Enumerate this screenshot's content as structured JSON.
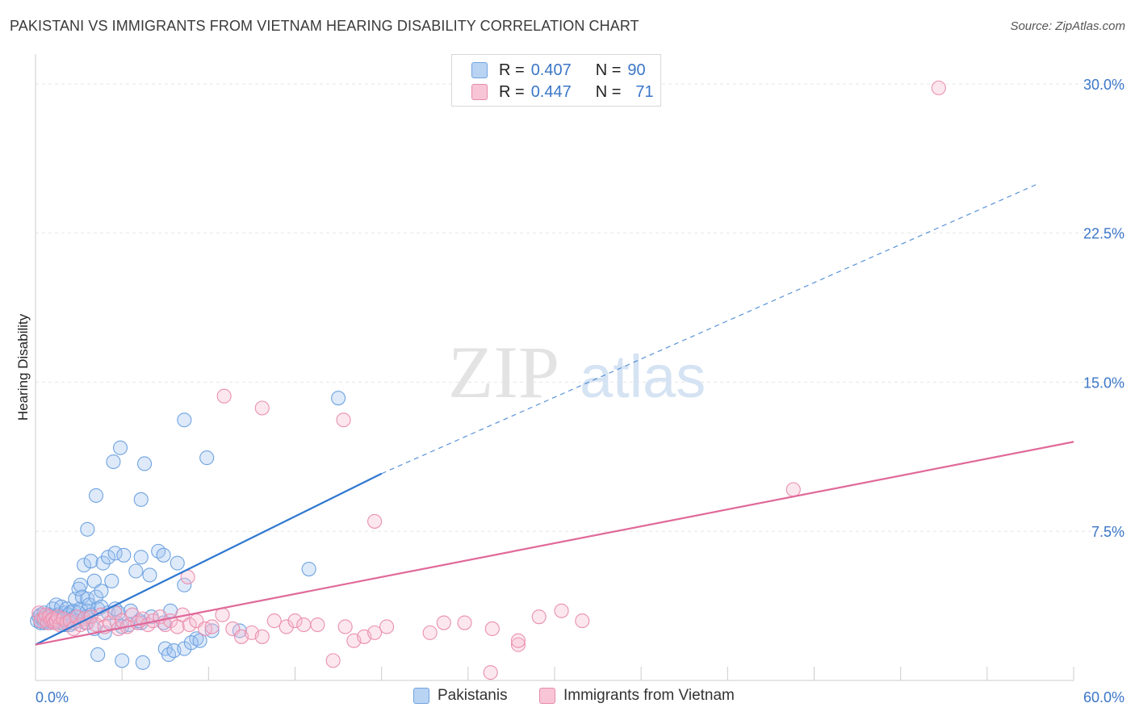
{
  "title": "PAKISTANI VS IMMIGRANTS FROM VIETNAM HEARING DISABILITY CORRELATION CHART",
  "source": "Source: ZipAtlas.com",
  "watermark": {
    "zip": "ZIP",
    "atlas": "atlas"
  },
  "legend": {
    "r_label": "R =",
    "n_label": "N =",
    "series": [
      {
        "name": "Pakistanis",
        "r": "0.407",
        "n": "90",
        "color": "#6fa3e0",
        "fill": "#b9d3f3"
      },
      {
        "name": "Immigrants from Vietnam",
        "r": "0.447",
        "n": "71",
        "color": "#e98aaa",
        "fill": "#f7c5d5"
      }
    ]
  },
  "chart_data": {
    "type": "scatter",
    "title": "PAKISTANI VS IMMIGRANTS FROM VIETNAM HEARING DISABILITY CORRELATION CHART",
    "xlabel": "",
    "ylabel": "Hearing Disability",
    "xlim": [
      0,
      60
    ],
    "ylim": [
      0,
      31.5
    ],
    "x_tick_labels": [
      "0.0%",
      "60.0%"
    ],
    "y_ticks": [
      7.5,
      15.0,
      22.5,
      30.0
    ],
    "y_tick_labels": [
      "7.5%",
      "15.0%",
      "22.5%",
      "30.0%"
    ],
    "grid": true,
    "series": [
      {
        "name": "Pakistanis",
        "trend": {
          "x0": 0,
          "y0": 1.8,
          "x_solid_end": 20,
          "y_solid_end": 10.4,
          "x1": 58,
          "y1": 25.0
        },
        "points": [
          [
            0.1,
            3.0
          ],
          [
            0.2,
            3.2
          ],
          [
            0.3,
            2.9
          ],
          [
            0.3,
            3.3
          ],
          [
            0.4,
            3.1
          ],
          [
            0.5,
            2.9
          ],
          [
            0.5,
            3.4
          ],
          [
            0.6,
            3.0
          ],
          [
            0.7,
            3.2
          ],
          [
            0.8,
            3.3
          ],
          [
            0.8,
            2.9
          ],
          [
            0.9,
            3.1
          ],
          [
            1.0,
            3.0
          ],
          [
            1.0,
            3.6
          ],
          [
            1.1,
            3.2
          ],
          [
            1.2,
            3.8
          ],
          [
            1.2,
            3.0
          ],
          [
            1.3,
            3.3
          ],
          [
            1.4,
            2.9
          ],
          [
            1.5,
            3.1
          ],
          [
            1.5,
            3.7
          ],
          [
            1.6,
            3.2
          ],
          [
            1.7,
            3.4
          ],
          [
            1.7,
            2.8
          ],
          [
            1.8,
            3.0
          ],
          [
            1.8,
            3.6
          ],
          [
            1.9,
            3.3
          ],
          [
            2.0,
            2.8
          ],
          [
            2.0,
            3.4
          ],
          [
            2.1,
            3.1
          ],
          [
            2.2,
            3.5
          ],
          [
            2.2,
            2.9
          ],
          [
            2.3,
            3.2
          ],
          [
            2.3,
            4.1
          ],
          [
            2.4,
            3.0
          ],
          [
            2.5,
            4.6
          ],
          [
            2.5,
            3.4
          ],
          [
            2.6,
            4.8
          ],
          [
            2.6,
            3.6
          ],
          [
            2.7,
            4.2
          ],
          [
            2.8,
            3.1
          ],
          [
            2.8,
            5.8
          ],
          [
            2.9,
            2.9
          ],
          [
            2.9,
            3.2
          ],
          [
            3.0,
            4.1
          ],
          [
            3.0,
            3.5
          ],
          [
            3.1,
            3.8
          ],
          [
            3.2,
            6.0
          ],
          [
            3.2,
            3.3
          ],
          [
            3.4,
            5.0
          ],
          [
            3.4,
            2.6
          ],
          [
            3.5,
            4.2
          ],
          [
            3.6,
            3.6
          ],
          [
            3.8,
            4.5
          ],
          [
            3.8,
            3.7
          ],
          [
            3.9,
            5.9
          ],
          [
            4.0,
            2.4
          ],
          [
            4.2,
            3.4
          ],
          [
            4.2,
            6.2
          ],
          [
            4.4,
            5.0
          ],
          [
            4.6,
            6.4
          ],
          [
            4.6,
            3.6
          ],
          [
            4.7,
            2.9
          ],
          [
            4.8,
            3.4
          ],
          [
            5.0,
            2.7
          ],
          [
            5.1,
            6.3
          ],
          [
            5.4,
            2.8
          ],
          [
            5.5,
            3.5
          ],
          [
            5.8,
            5.5
          ],
          [
            6.1,
            2.9
          ],
          [
            6.1,
            6.2
          ],
          [
            6.6,
            5.3
          ],
          [
            6.7,
            3.2
          ],
          [
            7.1,
            6.5
          ],
          [
            7.4,
            2.9
          ],
          [
            7.4,
            6.3
          ],
          [
            7.8,
            3.5
          ],
          [
            8.2,
            5.9
          ],
          [
            8.6,
            4.8
          ],
          [
            9.3,
            2.1
          ],
          [
            10.2,
            2.5
          ],
          [
            11.8,
            2.5
          ],
          [
            7.5,
            1.6
          ],
          [
            6.0,
            3.0
          ],
          [
            3.0,
            7.6
          ],
          [
            3.5,
            9.3
          ],
          [
            4.5,
            11.0
          ],
          [
            4.9,
            11.7
          ],
          [
            6.1,
            9.1
          ],
          [
            6.3,
            10.9
          ]
        ],
        "extra_points": [
          [
            8.6,
            13.1
          ],
          [
            9.9,
            11.2
          ],
          [
            17.5,
            14.2
          ],
          [
            15.8,
            5.6
          ],
          [
            3.6,
            1.3
          ],
          [
            5.0,
            1.0
          ],
          [
            6.2,
            0.9
          ],
          [
            7.7,
            1.3
          ],
          [
            8.0,
            1.5
          ],
          [
            8.6,
            1.6
          ],
          [
            9.0,
            1.9
          ],
          [
            9.5,
            2.0
          ]
        ]
      },
      {
        "name": "Immigrants from Vietnam",
        "trend": {
          "x0": 0,
          "y0": 1.8,
          "x1": 60,
          "y1": 12.0
        },
        "points": [
          [
            0.2,
            3.4
          ],
          [
            0.3,
            3.0
          ],
          [
            0.5,
            3.1
          ],
          [
            0.6,
            3.3
          ],
          [
            0.7,
            2.9
          ],
          [
            0.8,
            3.2
          ],
          [
            0.9,
            3.0
          ],
          [
            1.0,
            3.1
          ],
          [
            1.1,
            2.9
          ],
          [
            1.2,
            3.0
          ],
          [
            1.3,
            3.2
          ],
          [
            1.4,
            2.8
          ],
          [
            1.6,
            3.1
          ],
          [
            1.8,
            2.9
          ],
          [
            2.0,
            3.0
          ],
          [
            2.2,
            2.6
          ],
          [
            2.4,
            3.2
          ],
          [
            2.6,
            2.8
          ],
          [
            2.8,
            3.1
          ],
          [
            3.0,
            2.9
          ],
          [
            3.2,
            3.2
          ],
          [
            3.5,
            2.8
          ],
          [
            3.8,
            3.3
          ],
          [
            4.0,
            2.7
          ],
          [
            4.3,
            2.9
          ],
          [
            4.6,
            3.4
          ],
          [
            4.8,
            2.6
          ],
          [
            5.0,
            3.0
          ],
          [
            5.3,
            2.7
          ],
          [
            5.6,
            3.3
          ],
          [
            5.9,
            2.9
          ],
          [
            6.2,
            3.1
          ],
          [
            6.5,
            2.8
          ],
          [
            6.8,
            3.0
          ],
          [
            7.2,
            3.2
          ],
          [
            7.5,
            2.8
          ],
          [
            7.8,
            3.0
          ],
          [
            8.2,
            2.7
          ],
          [
            8.5,
            3.3
          ],
          [
            8.9,
            2.8
          ],
          [
            9.3,
            3.0
          ],
          [
            9.8,
            2.6
          ],
          [
            10.2,
            2.7
          ],
          [
            10.8,
            3.3
          ],
          [
            11.4,
            2.6
          ],
          [
            11.9,
            2.2
          ],
          [
            12.5,
            2.4
          ],
          [
            13.1,
            2.2
          ],
          [
            13.8,
            3.0
          ],
          [
            14.5,
            2.7
          ],
          [
            15.0,
            3.0
          ],
          [
            15.5,
            2.8
          ],
          [
            16.3,
            2.8
          ],
          [
            17.2,
            1.0
          ],
          [
            17.9,
            2.7
          ],
          [
            18.4,
            2.0
          ],
          [
            19.0,
            2.2
          ],
          [
            19.6,
            2.4
          ],
          [
            20.3,
            2.7
          ],
          [
            22.8,
            2.4
          ],
          [
            23.6,
            2.9
          ],
          [
            24.8,
            2.9
          ],
          [
            26.4,
            2.6
          ],
          [
            27.9,
            1.8
          ],
          [
            27.9,
            2.0
          ],
          [
            29.1,
            3.2
          ],
          [
            30.4,
            3.5
          ],
          [
            31.6,
            3.0
          ],
          [
            8.8,
            5.2
          ],
          [
            19.6,
            8.0
          ],
          [
            17.8,
            13.1
          ]
        ],
        "extra_points": [
          [
            10.9,
            14.3
          ],
          [
            13.1,
            13.7
          ],
          [
            43.8,
            9.6
          ],
          [
            52.2,
            29.8
          ],
          [
            26.3,
            0.4
          ]
        ]
      }
    ]
  }
}
